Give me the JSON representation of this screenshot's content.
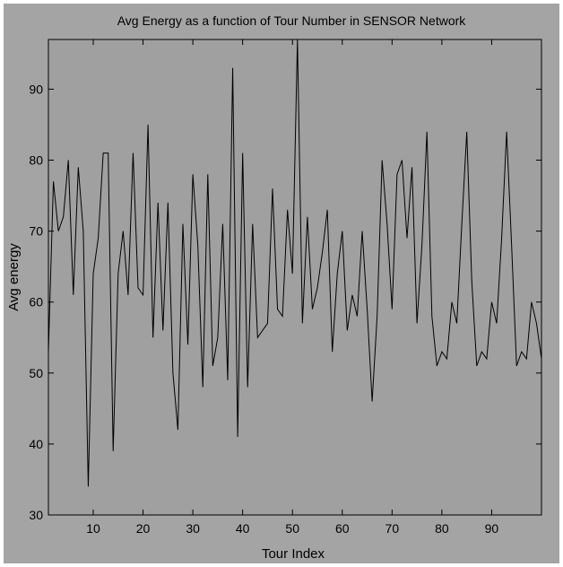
{
  "chart_data": {
    "type": "line",
    "title": "Avg Energy as a function of Tour Number in SENSOR Network",
    "xlabel": "Tour Index",
    "ylabel": "Avg energy",
    "xlim": [
      1,
      100
    ],
    "ylim": [
      30,
      97
    ],
    "xticks": [
      10,
      20,
      30,
      40,
      50,
      60,
      70,
      80,
      90
    ],
    "yticks": [
      30,
      40,
      50,
      60,
      70,
      80,
      90
    ],
    "grid": false,
    "colors": {
      "figure_bg": "#a4a4a4",
      "axes_bg": "#a0a0a0",
      "line": "#000000"
    },
    "series": [
      {
        "x": [
          1,
          2,
          3,
          4,
          5,
          6,
          7,
          8,
          9,
          10,
          11,
          12,
          13,
          14,
          15,
          16,
          17,
          18,
          19,
          20,
          21,
          22,
          23,
          24,
          25,
          26,
          27,
          28,
          29,
          30,
          31,
          32,
          33,
          34,
          35,
          36,
          37,
          38,
          39,
          40,
          41,
          42,
          43,
          44,
          45,
          46,
          47,
          48,
          49,
          50,
          51,
          52,
          53,
          54,
          55,
          56,
          57,
          58,
          59,
          60,
          61,
          62,
          63,
          64,
          65,
          66,
          67,
          68,
          69,
          70,
          71,
          72,
          73,
          74,
          75,
          76,
          77,
          78,
          79,
          80,
          81,
          82,
          83,
          84,
          85,
          86,
          87,
          88,
          89,
          90,
          91,
          92,
          93,
          94,
          95,
          96,
          97,
          98,
          99,
          100
        ],
        "values": [
          53,
          77,
          70,
          72,
          80,
          61,
          79,
          70,
          34,
          64,
          69,
          81,
          81,
          39,
          64,
          70,
          61,
          81,
          62,
          61,
          85,
          55,
          74,
          56,
          74,
          50,
          42,
          71,
          54,
          78,
          68,
          48,
          78,
          51,
          55,
          71,
          49,
          93,
          41,
          81,
          48,
          71,
          55,
          56,
          57,
          76,
          59,
          58,
          73,
          64,
          97,
          57,
          72,
          59,
          62,
          67,
          73,
          53,
          64,
          70,
          56,
          61,
          58,
          70,
          59,
          46,
          58,
          80,
          71,
          59,
          78,
          80,
          69,
          79,
          57,
          68,
          84,
          58,
          51,
          53,
          52,
          60,
          57,
          71,
          84,
          63,
          51,
          53,
          52,
          60,
          57,
          69,
          84,
          68,
          51,
          53,
          52,
          60,
          57,
          52
        ]
      }
    ]
  }
}
